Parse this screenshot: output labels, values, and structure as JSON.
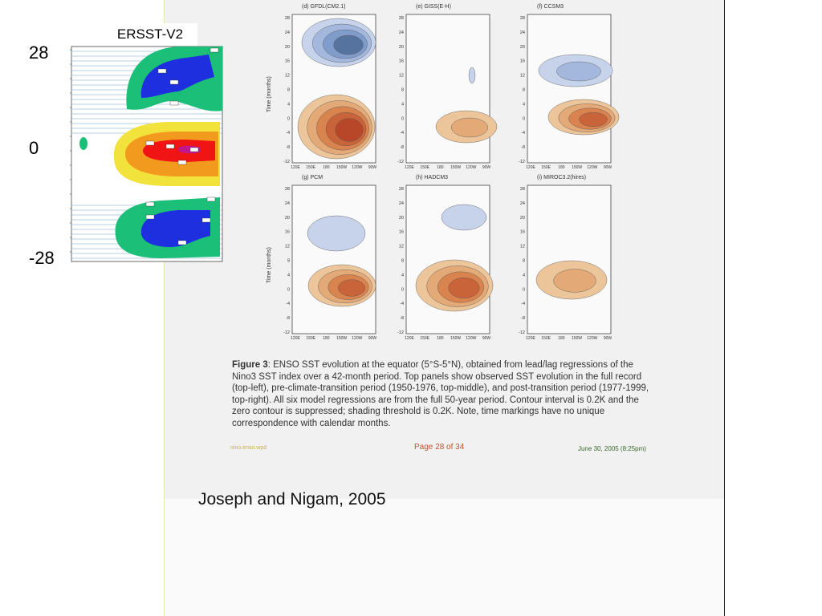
{
  "left_figure": {
    "title": "ERSST-V2",
    "y_labels": [
      "28",
      "0",
      "-28"
    ]
  },
  "panels": [
    {
      "id": "d",
      "title": "(d) GFDL(CM2.1)",
      "ylabel": "Time (months)"
    },
    {
      "id": "e",
      "title": "(e) GISS(E-H)",
      "ylabel": ""
    },
    {
      "id": "f",
      "title": "(f) CCSM3",
      "ylabel": ""
    },
    {
      "id": "g",
      "title": "(g) PCM",
      "ylabel": "Time (months)"
    },
    {
      "id": "h",
      "title": "(h) HADCM3",
      "ylabel": ""
    },
    {
      "id": "i",
      "title": "(i) MIROC3.2(hires)",
      "ylabel": ""
    }
  ],
  "axes": {
    "y_ticks": [
      "28",
      "24",
      "20",
      "16",
      "12",
      "8",
      "4",
      "0",
      "-4",
      "-8",
      "-12"
    ],
    "x_ticks": [
      "120E",
      "150E",
      "180",
      "150W",
      "120W",
      "90W"
    ]
  },
  "caption": {
    "lead": "Figure 3",
    "text": ": ENSO SST evolution at the equator (5°S-5°N), obtained from lead/lag regressions of the Nino3 SST index over a 42-month period. Top panels show observed SST evolution in the full record (top-left), pre-climate-transition period (1950-1976, top-middle), and post-transition period (1977-1999, top-right). All six model regressions are from the full 50-year period.  Contour interval is 0.2K and the zero contour is suppressed; shading threshold is 0.2K. Note, time markings have no unique correspondence with calendar months."
  },
  "footer": {
    "left": "nino.enso.wpd",
    "page": "Page 28 of  34",
    "date": "June 30, 2005 (8:25pm)"
  },
  "citation": "Joseph and Nigam, 2005",
  "colors": {
    "warm_dark": "#b8472a",
    "warm_mid": "#d9844e",
    "warm_light": "#ecc59a",
    "cool_dark": "#36549c",
    "cool_mid": "#7f9ccb",
    "cool_light": "#c6d3ea",
    "ersst_green": "#1bbf78",
    "ersst_blue": "#1e2fe0",
    "ersst_yellow": "#f2e23c",
    "ersst_orange": "#f29a1e",
    "ersst_red": "#f01414"
  }
}
